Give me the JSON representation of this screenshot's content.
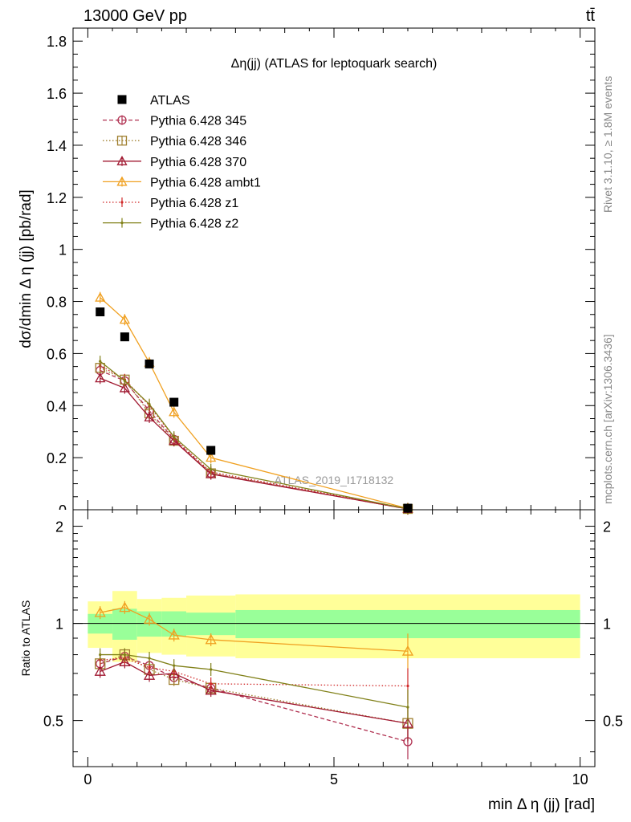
{
  "header": {
    "left": "13000 GeV pp",
    "right": "tt̄"
  },
  "side_text": {
    "rivet": "Rivet 3.1.10, ≥ 1.8M events",
    "mcplots": "mcplots.cern.ch [arXiv:1306.3436]"
  },
  "chart_data": {
    "type": "line",
    "title": "Δη(jj) (ATLAS for leptoquark search)",
    "watermark": "ATLAS_2019_I1718132",
    "xlabel": "min Δ η (jj) [rad]",
    "ylabel": "dσ/dmin Δ η (jj) [pb/rad]",
    "ratio_ylabel": "Ratio to ATLAS",
    "xlim": [
      -0.3,
      10.3
    ],
    "ylim": [
      0,
      1.85
    ],
    "ratio_ylim": [
      0.36,
      2.25
    ],
    "ratio_log_scale": true,
    "x_ticks": [
      "0",
      "5",
      "10"
    ],
    "y_ticks": [
      "0.2",
      "0.4",
      "0.6",
      "0.8",
      "1",
      "1.2",
      "1.4",
      "1.6",
      "1.8"
    ],
    "ratio_ticks": [
      "0.5",
      "1",
      "2"
    ],
    "bins": [
      [
        0,
        0.5
      ],
      [
        0.5,
        1.0
      ],
      [
        1.0,
        1.5
      ],
      [
        1.5,
        2.0
      ],
      [
        2.0,
        3.0
      ],
      [
        3.0,
        10.0
      ]
    ],
    "x": [
      0.25,
      0.75,
      1.25,
      1.75,
      2.5,
      6.5
    ],
    "data": {
      "name": "ATLAS",
      "color": "#000000",
      "values": [
        0.76,
        0.664,
        0.56,
        0.413,
        0.228,
        0.006
      ]
    },
    "uncertainty_bands": {
      "inner_color": "#99ff99",
      "outer_color": "#ffff99",
      "inner_ratio": [
        [
          0.93,
          1.07
        ],
        [
          0.89,
          1.11
        ],
        [
          0.91,
          1.09
        ],
        [
          0.91,
          1.09
        ],
        [
          0.92,
          1.08
        ],
        [
          0.9,
          1.1
        ]
      ],
      "outer_ratio": [
        [
          0.84,
          1.17
        ],
        [
          0.76,
          1.26
        ],
        [
          0.81,
          1.19
        ],
        [
          0.8,
          1.2
        ],
        [
          0.79,
          1.22
        ],
        [
          0.78,
          1.23
        ]
      ]
    },
    "series": [
      {
        "name": "Pythia 6.428 345",
        "color": "#b03050",
        "dash": "5,3",
        "marker": "circle",
        "values": [
          0.535,
          0.495,
          0.38,
          0.27,
          0.14,
          0.0026
        ],
        "ratio": [
          0.75,
          0.79,
          0.74,
          0.68,
          0.63,
          0.43
        ]
      },
      {
        "name": "Pythia 6.428 346",
        "color": "#a08030",
        "dash": "1.5,2.5",
        "marker": "square",
        "values": [
          0.545,
          0.5,
          0.37,
          0.265,
          0.14,
          0.0031
        ],
        "ratio": [
          0.75,
          0.8,
          0.72,
          0.67,
          0.63,
          0.49
        ]
      },
      {
        "name": "Pythia 6.428 370",
        "color": "#a01830",
        "dash": "",
        "marker": "triangle",
        "values": [
          0.505,
          0.467,
          0.355,
          0.265,
          0.137,
          0.0031
        ],
        "ratio": [
          0.71,
          0.76,
          0.69,
          0.7,
          0.62,
          0.49
        ]
      },
      {
        "name": "Pythia 6.428 ambt1",
        "color": "#f0a020",
        "dash": "",
        "marker": "triangle",
        "values": [
          0.815,
          0.73,
          0.565,
          0.375,
          0.2,
          0.005
        ],
        "ratio": [
          1.08,
          1.12,
          1.03,
          0.92,
          0.89,
          0.82
        ]
      },
      {
        "name": "Pythia 6.428 z1",
        "color": "#d02828",
        "dash": "1.5,2.5",
        "marker": "dot",
        "values": [
          0.555,
          0.5,
          0.4,
          0.275,
          0.145,
          0.004
        ],
        "ratio": [
          0.77,
          0.78,
          0.73,
          0.71,
          0.65,
          0.64
        ]
      },
      {
        "name": "Pythia 6.428 z2",
        "color": "#808018",
        "dash": "",
        "marker": "dot",
        "values": [
          0.57,
          0.495,
          0.405,
          0.28,
          0.155,
          0.0035
        ],
        "ratio": [
          0.8,
          0.8,
          0.78,
          0.74,
          0.72,
          0.55
        ]
      }
    ]
  }
}
